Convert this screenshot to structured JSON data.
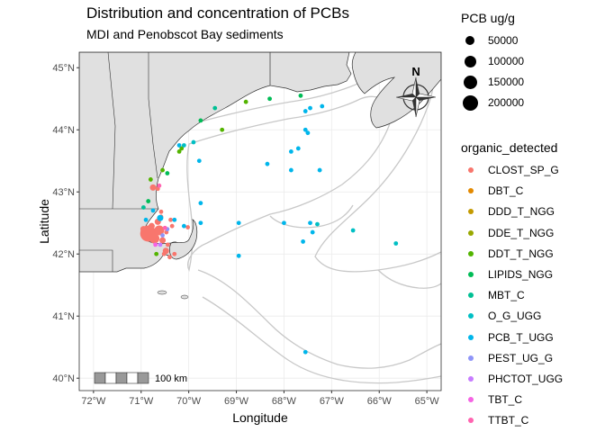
{
  "title": "Distribution and concentration of PCBs",
  "subtitle": "MDI and Penobscot Bay sediments",
  "axes": {
    "xlabel": "Longitude",
    "ylabel": "Latitude",
    "x_ticks": [
      "72°W",
      "71°W",
      "70°W",
      "69°W",
      "68°W",
      "67°W",
      "66°W",
      "65°W"
    ],
    "y_ticks": [
      "45°N",
      "44°N",
      "43°N",
      "42°N",
      "41°N",
      "40°N"
    ],
    "xlim": [
      -72.3,
      -64.7
    ],
    "ylim": [
      39.8,
      45.25
    ]
  },
  "scale_bar": {
    "label": "100 km"
  },
  "north_arrow": {
    "label": "N"
  },
  "size_legend": {
    "title": "PCB ug/g",
    "entries": [
      "50000",
      "100000",
      "150000",
      "200000"
    ]
  },
  "color_legend": {
    "title": "organic_detected",
    "entries": [
      {
        "label": "CLOST_SP_G",
        "color": "#F8766D"
      },
      {
        "label": "DBT_C",
        "color": "#E38900"
      },
      {
        "label": "DDD_T_NGG",
        "color": "#C49A00"
      },
      {
        "label": "DDE_T_NGG",
        "color": "#99A800"
      },
      {
        "label": "DDT_T_NGG",
        "color": "#53B400"
      },
      {
        "label": "LIPIDS_NGG",
        "color": "#00BC56"
      },
      {
        "label": "MBT_C",
        "color": "#00C094"
      },
      {
        "label": "O_G_UGG",
        "color": "#00BFC4"
      },
      {
        "label": "PCB_T_UGG",
        "color": "#00B6EB"
      },
      {
        "label": "PEST_UG_G",
        "color": "#8F95F8"
      },
      {
        "label": "PHCTOT_UGG",
        "color": "#C77CFF"
      },
      {
        "label": "TBT_C",
        "color": "#F564E3"
      },
      {
        "label": "TTBT_C",
        "color": "#FF64B0"
      }
    ]
  },
  "colors": {
    "land": "#e0e0e0",
    "land_border": "#333333",
    "bathymetry": "#c8c8c8",
    "grid": "#ebebeb"
  },
  "chart_data": {
    "type": "scatter",
    "x_unit": "degrees longitude",
    "y_unit": "degrees latitude",
    "points": [
      {
        "lon": -70.85,
        "lat": 42.33,
        "size": 3,
        "group": "CLOST_SP_G"
      },
      {
        "lon": -70.62,
        "lat": 42.38,
        "size": 2,
        "group": "CLOST_SP_G"
      },
      {
        "lon": -70.72,
        "lat": 42.25,
        "size": 2,
        "group": "CLOST_SP_G"
      },
      {
        "lon": -70.55,
        "lat": 42.22,
        "size": 1,
        "group": "CLOST_SP_G"
      },
      {
        "lon": -70.78,
        "lat": 42.45,
        "size": 1,
        "group": "CLOST_SP_G"
      },
      {
        "lon": -70.65,
        "lat": 42.52,
        "size": 1,
        "group": "CLOST_SP_G"
      },
      {
        "lon": -70.48,
        "lat": 42.05,
        "size": 1,
        "group": "CLOST_SP_G"
      },
      {
        "lon": -70.4,
        "lat": 41.95,
        "size": 0,
        "group": "CLOST_SP_G"
      },
      {
        "lon": -70.3,
        "lat": 42.0,
        "size": 0,
        "group": "CLOST_SP_G"
      },
      {
        "lon": -70.58,
        "lat": 42.6,
        "size": 0,
        "group": "CLOST_SP_G"
      },
      {
        "lon": -70.75,
        "lat": 43.07,
        "size": 1,
        "group": "CLOST_SP_G"
      },
      {
        "lon": -70.65,
        "lat": 43.05,
        "size": 0,
        "group": "CLOST_SP_G"
      },
      {
        "lon": -70.02,
        "lat": 42.43,
        "size": 0,
        "group": "CLOST_SP_G"
      },
      {
        "lon": -70.95,
        "lat": 42.4,
        "size": 1,
        "group": "CLOST_SP_G"
      },
      {
        "lon": -70.35,
        "lat": 42.45,
        "size": 0,
        "group": "CLOST_SP_G"
      },
      {
        "lon": -70.38,
        "lat": 42.55,
        "size": 0,
        "group": "CLOST_SP_G"
      },
      {
        "lon": -70.47,
        "lat": 42.35,
        "size": 0,
        "group": "CLOST_SP_G"
      },
      {
        "lon": -70.44,
        "lat": 42.15,
        "size": 0,
        "group": "CLOST_SP_G"
      },
      {
        "lon": -70.52,
        "lat": 42.0,
        "size": 0,
        "group": "CLOST_SP_G"
      },
      {
        "lon": -70.58,
        "lat": 42.68,
        "size": 0,
        "group": "CLOST_SP_G"
      },
      {
        "lon": -70.68,
        "lat": 42.0,
        "size": 0,
        "group": "DDT_T_NGG"
      },
      {
        "lon": -70.8,
        "lat": 43.2,
        "size": 0,
        "group": "DDT_T_NGG"
      },
      {
        "lon": -70.55,
        "lat": 43.35,
        "size": 0,
        "group": "DDT_T_NGG"
      },
      {
        "lon": -70.2,
        "lat": 43.65,
        "size": 0,
        "group": "DDT_T_NGG"
      },
      {
        "lon": -70.15,
        "lat": 43.7,
        "size": 0,
        "group": "DDT_T_NGG"
      },
      {
        "lon": -69.3,
        "lat": 44.0,
        "size": 0,
        "group": "DDT_T_NGG"
      },
      {
        "lon": -68.8,
        "lat": 44.45,
        "size": 0,
        "group": "DDT_T_NGG"
      },
      {
        "lon": -68.3,
        "lat": 44.5,
        "size": 0,
        "group": "LIPIDS_NGG"
      },
      {
        "lon": -67.65,
        "lat": 44.55,
        "size": 0,
        "group": "LIPIDS_NGG"
      },
      {
        "lon": -69.75,
        "lat": 44.15,
        "size": 0,
        "group": "LIPIDS_NGG"
      },
      {
        "lon": -70.85,
        "lat": 42.85,
        "size": 0,
        "group": "LIPIDS_NGG"
      },
      {
        "lon": -70.45,
        "lat": 43.3,
        "size": 0,
        "group": "LIPIDS_NGG"
      },
      {
        "lon": -69.45,
        "lat": 44.35,
        "size": 0,
        "group": "MBT_C"
      },
      {
        "lon": -70.95,
        "lat": 42.75,
        "size": 0,
        "group": "MBT_C"
      },
      {
        "lon": -70.1,
        "lat": 43.75,
        "size": 0,
        "group": "O_G_UGG"
      },
      {
        "lon": -69.9,
        "lat": 43.8,
        "size": 0,
        "group": "O_G_UGG"
      },
      {
        "lon": -66.55,
        "lat": 42.38,
        "size": 0,
        "group": "O_G_UGG"
      },
      {
        "lon": -65.65,
        "lat": 42.17,
        "size": 0,
        "group": "O_G_UGG"
      },
      {
        "lon": -67.3,
        "lat": 42.48,
        "size": 0,
        "group": "O_G_UGG"
      },
      {
        "lon": -70.1,
        "lat": 42.45,
        "size": 0,
        "group": "PCB_T_UGG"
      },
      {
        "lon": -69.75,
        "lat": 42.5,
        "size": 0,
        "group": "PCB_T_UGG"
      },
      {
        "lon": -69.75,
        "lat": 42.82,
        "size": 0,
        "group": "PCB_T_UGG"
      },
      {
        "lon": -68.95,
        "lat": 42.5,
        "size": 0,
        "group": "PCB_T_UGG"
      },
      {
        "lon": -68.0,
        "lat": 42.5,
        "size": 0,
        "group": "PCB_T_UGG"
      },
      {
        "lon": -67.45,
        "lat": 42.5,
        "size": 0,
        "group": "PCB_T_UGG"
      },
      {
        "lon": -67.4,
        "lat": 42.35,
        "size": 0,
        "group": "PCB_T_UGG"
      },
      {
        "lon": -67.6,
        "lat": 42.2,
        "size": 0,
        "group": "PCB_T_UGG"
      },
      {
        "lon": -68.35,
        "lat": 43.45,
        "size": 0,
        "group": "PCB_T_UGG"
      },
      {
        "lon": -67.85,
        "lat": 43.35,
        "size": 0,
        "group": "PCB_T_UGG"
      },
      {
        "lon": -67.25,
        "lat": 43.35,
        "size": 0,
        "group": "PCB_T_UGG"
      },
      {
        "lon": -67.85,
        "lat": 43.65,
        "size": 0,
        "group": "PCB_T_UGG"
      },
      {
        "lon": -67.7,
        "lat": 43.7,
        "size": 0,
        "group": "PCB_T_UGG"
      },
      {
        "lon": -67.55,
        "lat": 44.0,
        "size": 0,
        "group": "PCB_T_UGG"
      },
      {
        "lon": -67.5,
        "lat": 43.95,
        "size": 0,
        "group": "PCB_T_UGG"
      },
      {
        "lon": -67.45,
        "lat": 44.35,
        "size": 0,
        "group": "PCB_T_UGG"
      },
      {
        "lon": -67.55,
        "lat": 44.3,
        "size": 0,
        "group": "PCB_T_UGG"
      },
      {
        "lon": -67.2,
        "lat": 44.38,
        "size": 0,
        "group": "PCB_T_UGG"
      },
      {
        "lon": -69.78,
        "lat": 43.5,
        "size": 0,
        "group": "PCB_T_UGG"
      },
      {
        "lon": -68.95,
        "lat": 41.97,
        "size": 0,
        "group": "PCB_T_UGG"
      },
      {
        "lon": -67.55,
        "lat": 40.42,
        "size": 0,
        "group": "PCB_T_UGG"
      },
      {
        "lon": -70.6,
        "lat": 42.58,
        "size": 1,
        "group": "PCB_T_UGG"
      },
      {
        "lon": -70.3,
        "lat": 42.55,
        "size": 0,
        "group": "PCB_T_UGG"
      },
      {
        "lon": -70.75,
        "lat": 42.7,
        "size": 0,
        "group": "PCB_T_UGG"
      },
      {
        "lon": -70.9,
        "lat": 42.55,
        "size": 0,
        "group": "PCB_T_UGG"
      },
      {
        "lon": -70.2,
        "lat": 43.75,
        "size": 0,
        "group": "PCB_T_UGG"
      },
      {
        "lon": -70.55,
        "lat": 42.3,
        "size": 0,
        "group": "PEST_UG_G"
      },
      {
        "lon": -70.45,
        "lat": 42.4,
        "size": 0,
        "group": "PEST_UG_G"
      },
      {
        "lon": -70.6,
        "lat": 42.15,
        "size": 0,
        "group": "PHCTOT_UGG"
      },
      {
        "lon": -70.7,
        "lat": 42.15,
        "size": 0,
        "group": "TBT_C"
      },
      {
        "lon": -70.62,
        "lat": 43.1,
        "size": 0,
        "group": "TTBT_C"
      },
      {
        "lon": -70.5,
        "lat": 42.42,
        "size": 0,
        "group": "TTBT_C"
      }
    ]
  }
}
